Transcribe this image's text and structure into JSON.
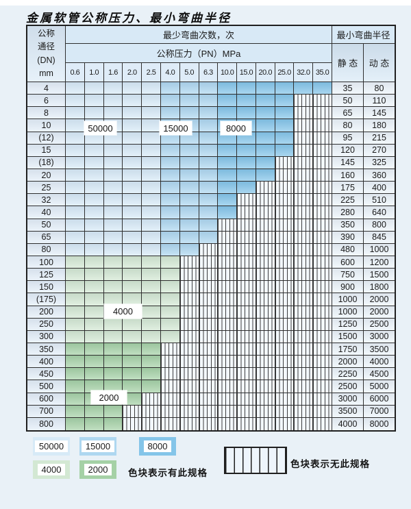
{
  "title": "金属软管公称压力、最小弯曲半径",
  "colors": {
    "c50000": "#d7eaf7",
    "c15000": "#aed7f0",
    "c8000": "#84c5e9",
    "c4000": "#d3e8d3",
    "c2000": "#a5d1a6"
  },
  "table": {
    "dn_header_lines": [
      "公称",
      "通径",
      "(DN)",
      "mm"
    ],
    "cycles_header": "最少弯曲次数，次",
    "pressure_header": "公称压力（PN）MPa",
    "radius_header": "最小弯曲半径",
    "static_header": "静 态",
    "dynamic_header": "动 态",
    "pressure_columns": [
      "0.6",
      "1.0",
      "1.6",
      "2.0",
      "2.5",
      "4.0",
      "5.0",
      "6.3",
      "10.0",
      "15.0",
      "20.0",
      "25.0",
      "32.0",
      "35.0"
    ],
    "zone_color_map": {
      "blue": [
        "c50000",
        "c50000",
        "c50000",
        "c50000",
        "c50000",
        "c15000",
        "c15000",
        "c15000",
        "c8000",
        "c8000",
        "c8000",
        "c8000",
        "c8000",
        "c8000"
      ],
      "g4": [
        "c4000",
        "c4000",
        "c4000",
        "c4000",
        "c4000",
        "c4000",
        "c4000",
        "c4000",
        "c4000",
        "c4000",
        "c4000",
        "c4000",
        "c4000",
        "c4000"
      ],
      "g2": [
        "c2000",
        "c2000",
        "c2000",
        "c2000",
        "c2000",
        "c2000",
        "c2000",
        "c2000",
        "c2000",
        "c2000",
        "c2000",
        "c2000",
        "c2000",
        "c2000"
      ]
    },
    "rows": [
      {
        "dn": "4",
        "span": 14,
        "zone": "blue",
        "static": "35",
        "dynamic": "80"
      },
      {
        "dn": "6",
        "span": 12,
        "zone": "blue",
        "static": "50",
        "dynamic": "110"
      },
      {
        "dn": "8",
        "span": 12,
        "zone": "blue",
        "static": "65",
        "dynamic": "145"
      },
      {
        "dn": "10",
        "span": 12,
        "zone": "blue",
        "static": "80",
        "dynamic": "180"
      },
      {
        "dn": "(12)",
        "span": 12,
        "zone": "blue",
        "static": "95",
        "dynamic": "215"
      },
      {
        "dn": "15",
        "span": 12,
        "zone": "blue",
        "static": "120",
        "dynamic": "270"
      },
      {
        "dn": "(18)",
        "span": 11,
        "zone": "blue",
        "static": "145",
        "dynamic": "325"
      },
      {
        "dn": "20",
        "span": 11,
        "zone": "blue",
        "static": "160",
        "dynamic": "360"
      },
      {
        "dn": "25",
        "span": 10,
        "zone": "blue",
        "static": "175",
        "dynamic": "400"
      },
      {
        "dn": "32",
        "span": 9,
        "zone": "blue",
        "static": "225",
        "dynamic": "510"
      },
      {
        "dn": "40",
        "span": 9,
        "zone": "blue",
        "static": "280",
        "dynamic": "640"
      },
      {
        "dn": "50",
        "span": 8,
        "zone": "blue",
        "static": "350",
        "dynamic": "800"
      },
      {
        "dn": "65",
        "span": 8,
        "zone": "blue",
        "static": "390",
        "dynamic": "845"
      },
      {
        "dn": "80",
        "span": 7,
        "zone": "blue",
        "static": "480",
        "dynamic": "1000"
      },
      {
        "dn": "100",
        "span": 6,
        "zone": "g4",
        "static": "600",
        "dynamic": "1200"
      },
      {
        "dn": "125",
        "span": 6,
        "zone": "g4",
        "static": "750",
        "dynamic": "1500"
      },
      {
        "dn": "150",
        "span": 6,
        "zone": "g4",
        "static": "900",
        "dynamic": "1800"
      },
      {
        "dn": "(175)",
        "span": 6,
        "zone": "g4",
        "static": "1000",
        "dynamic": "2000"
      },
      {
        "dn": "200",
        "span": 6,
        "zone": "g4",
        "static": "1000",
        "dynamic": "2000"
      },
      {
        "dn": "250",
        "span": 6,
        "zone": "g4",
        "static": "1250",
        "dynamic": "2500"
      },
      {
        "dn": "300",
        "span": 6,
        "zone": "g4",
        "static": "1500",
        "dynamic": "3000"
      },
      {
        "dn": "350",
        "span": 5,
        "zone": "g2",
        "static": "1750",
        "dynamic": "3500"
      },
      {
        "dn": "400",
        "span": 5,
        "zone": "g2",
        "static": "2000",
        "dynamic": "4000"
      },
      {
        "dn": "450",
        "span": 5,
        "zone": "g2",
        "static": "2250",
        "dynamic": "4500"
      },
      {
        "dn": "500",
        "span": 5,
        "zone": "g2",
        "static": "2500",
        "dynamic": "5000"
      },
      {
        "dn": "600",
        "span": 4,
        "zone": "g2",
        "static": "3000",
        "dynamic": "6000"
      },
      {
        "dn": "700",
        "span": 3,
        "zone": "g2",
        "static": "3500",
        "dynamic": "7000"
      },
      {
        "dn": "800",
        "span": 3,
        "zone": "g2",
        "static": "4000",
        "dynamic": "8000"
      }
    ]
  },
  "float_labels": [
    {
      "key": "fl-50000",
      "text": "50000"
    },
    {
      "key": "fl-15000",
      "text": "15000"
    },
    {
      "key": "fl-8000",
      "text": "8000"
    },
    {
      "key": "fl-4000",
      "text": "4000"
    },
    {
      "key": "fl-2000",
      "text": "2000"
    }
  ],
  "legend": {
    "swatches": [
      {
        "label": "50000",
        "color": "c50000"
      },
      {
        "label": "15000",
        "color": "c15000"
      },
      {
        "label": "8000",
        "color": "c8000"
      },
      {
        "label": "4000",
        "color": "c4000"
      },
      {
        "label": "2000",
        "color": "c2000"
      }
    ],
    "has_spec_text": "色块表示有此规格",
    "no_spec_text": "色块表示无此规格"
  }
}
